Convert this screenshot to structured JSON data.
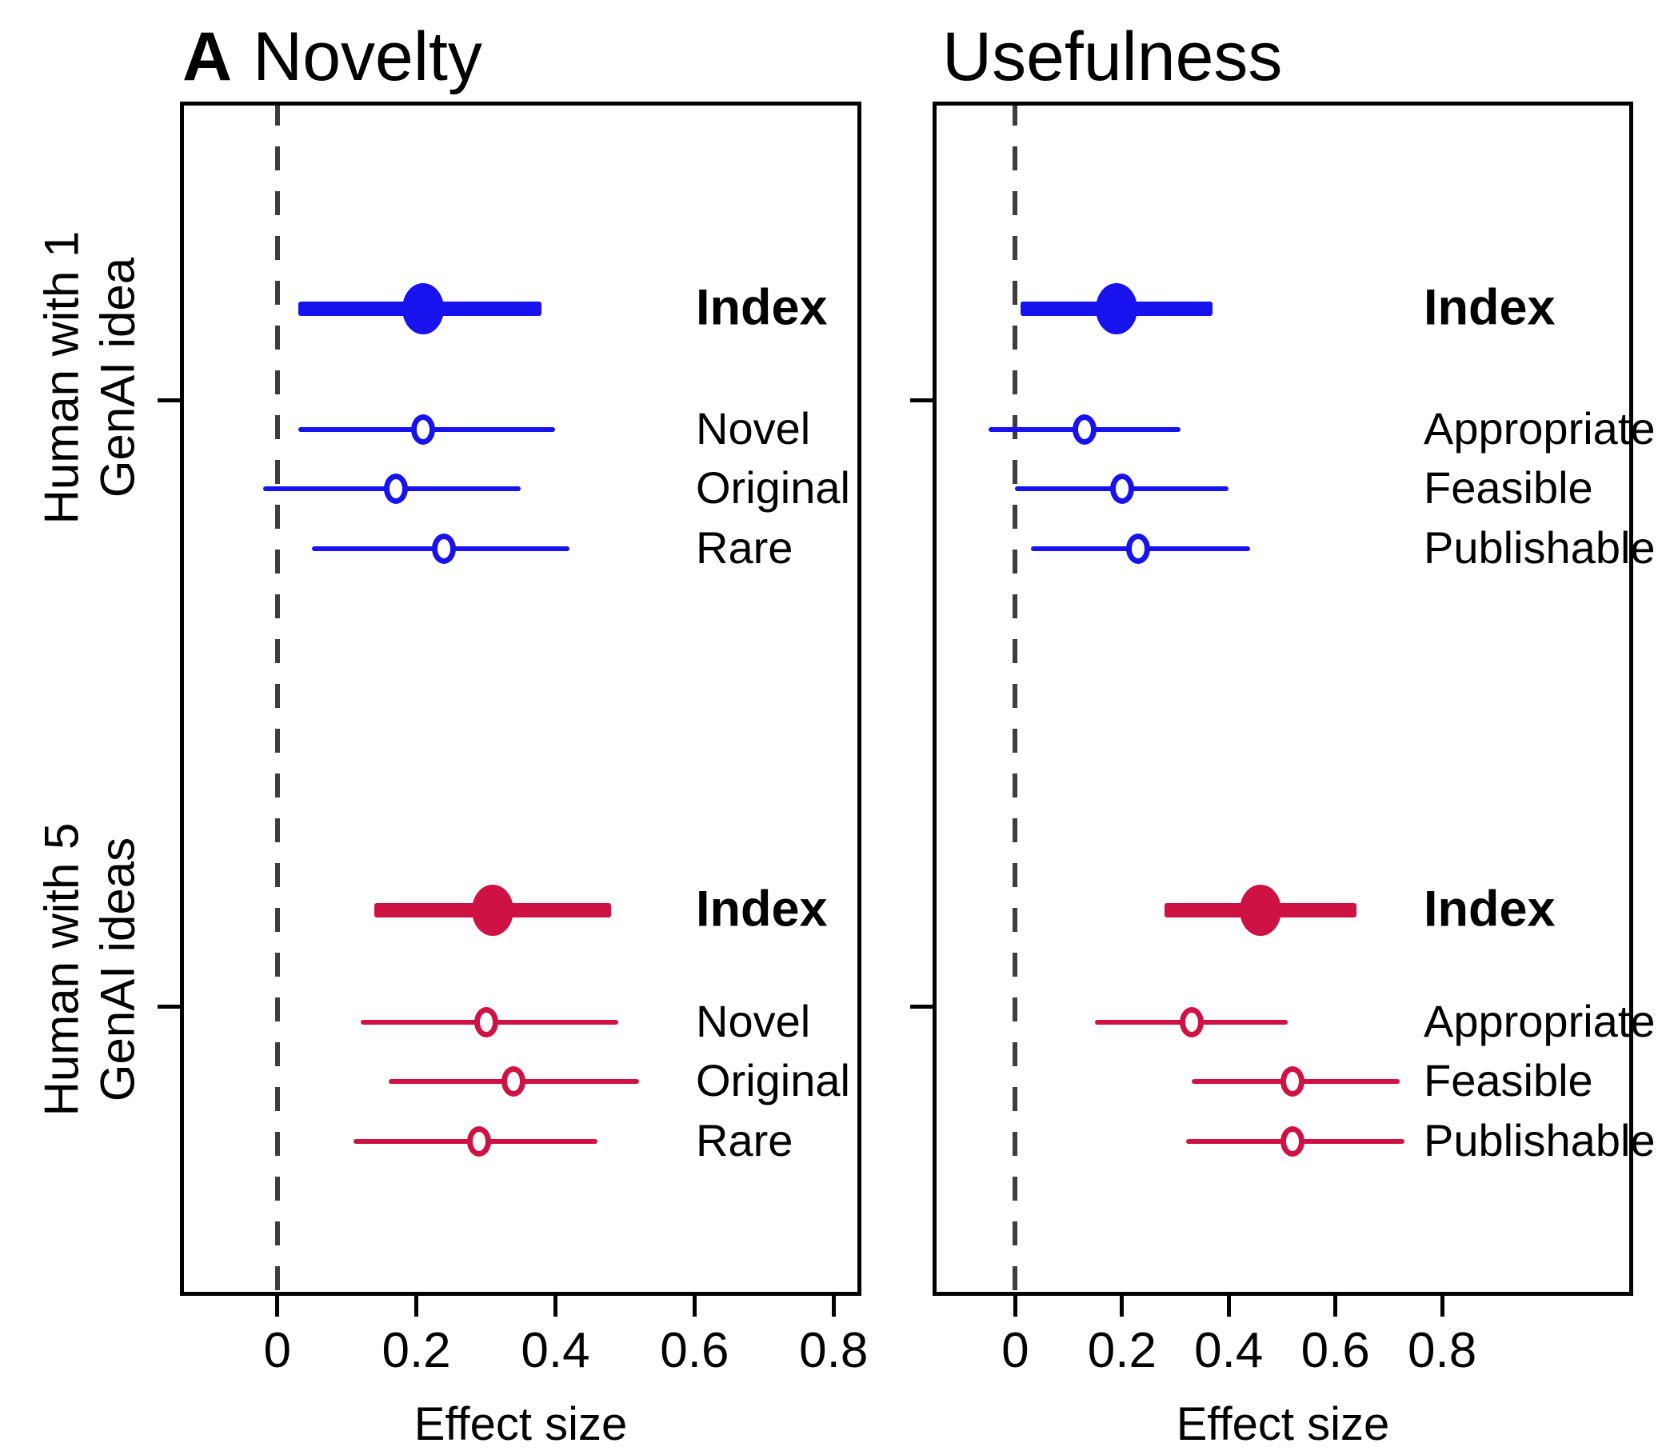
{
  "figure": {
    "panel_label": "A",
    "colors": {
      "group1": "#1712ee",
      "group2": "#cf1244",
      "reference_line": "#3d3d3d",
      "axis": "#000000"
    },
    "groups": [
      {
        "axis_label_line1": "Human with 1",
        "axis_label_line2": "GenAI idea"
      },
      {
        "axis_label_line1": "Human with 5",
        "axis_label_line2": "GenAI ideas"
      }
    ]
  },
  "chart_data": [
    {
      "type": "forest",
      "title": "Novelty",
      "xlabel": "Effect size",
      "xlim": [
        -0.14,
        0.84
      ],
      "x_tick_values": [
        0,
        0.2,
        0.4,
        0.6,
        0.8
      ],
      "x_ticks": [
        "0",
        "0.2",
        "0.4",
        "0.6",
        "0.8"
      ],
      "reference_line_x": 0,
      "grid": false,
      "legend_position": "none",
      "groups": [
        {
          "name": "Human with 1 GenAI idea",
          "color_key": "group1",
          "rows": [
            {
              "label": "Index",
              "style": "index",
              "estimate": 0.21,
              "ci_low": 0.03,
              "ci_high": 0.38
            },
            {
              "label": "Novel",
              "style": "item",
              "estimate": 0.21,
              "ci_low": 0.03,
              "ci_high": 0.4
            },
            {
              "label": "Original",
              "style": "item",
              "estimate": 0.17,
              "ci_low": -0.02,
              "ci_high": 0.35
            },
            {
              "label": "Rare",
              "style": "item",
              "estimate": 0.24,
              "ci_low": 0.05,
              "ci_high": 0.42
            }
          ]
        },
        {
          "name": "Human with 5 GenAI ideas",
          "color_key": "group2",
          "rows": [
            {
              "label": "Index",
              "style": "index",
              "estimate": 0.31,
              "ci_low": 0.14,
              "ci_high": 0.48
            },
            {
              "label": "Novel",
              "style": "item",
              "estimate": 0.3,
              "ci_low": 0.12,
              "ci_high": 0.49
            },
            {
              "label": "Original",
              "style": "item",
              "estimate": 0.34,
              "ci_low": 0.16,
              "ci_high": 0.52
            },
            {
              "label": "Rare",
              "style": "item",
              "estimate": 0.29,
              "ci_low": 0.11,
              "ci_high": 0.46
            }
          ]
        }
      ]
    },
    {
      "type": "forest",
      "title": "Usefulness",
      "xlabel": "Effect size",
      "xlim": [
        -0.155,
        1.158
      ],
      "x_tick_values": [
        0,
        0.2,
        0.4,
        0.6,
        0.8
      ],
      "x_ticks": [
        "0",
        "0.2",
        "0.4",
        "0.6",
        "0.8"
      ],
      "reference_line_x": 0,
      "grid": false,
      "legend_position": "none",
      "groups": [
        {
          "name": "Human with 1 GenAI idea",
          "color_key": "group1",
          "rows": [
            {
              "label": "Index",
              "style": "index",
              "estimate": 0.19,
              "ci_low": 0.01,
              "ci_high": 0.37
            },
            {
              "label": "Appropriate",
              "style": "item",
              "estimate": 0.13,
              "ci_low": -0.05,
              "ci_high": 0.31
            },
            {
              "label": "Feasible",
              "style": "item",
              "estimate": 0.2,
              "ci_low": 0.0,
              "ci_high": 0.4
            },
            {
              "label": "Publishable",
              "style": "item",
              "estimate": 0.23,
              "ci_low": 0.03,
              "ci_high": 0.44
            }
          ]
        },
        {
          "name": "Human with 5 GenAI ideas",
          "color_key": "group2",
          "rows": [
            {
              "label": "Index",
              "style": "index",
              "estimate": 0.46,
              "ci_low": 0.28,
              "ci_high": 0.64
            },
            {
              "label": "Appropriate",
              "style": "item",
              "estimate": 0.33,
              "ci_low": 0.15,
              "ci_high": 0.51
            },
            {
              "label": "Feasible",
              "style": "item",
              "estimate": 0.52,
              "ci_low": 0.33,
              "ci_high": 0.72
            },
            {
              "label": "Publishable",
              "style": "item",
              "estimate": 0.52,
              "ci_low": 0.32,
              "ci_high": 0.73
            }
          ]
        }
      ]
    }
  ]
}
